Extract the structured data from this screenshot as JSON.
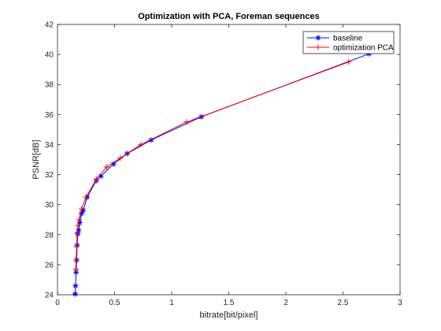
{
  "chart_data": {
    "type": "line",
    "title": "Optimization with PCA, Foreman sequences",
    "xlabel": "bitrate[bit/pixel]",
    "ylabel": "PSNR[dB]",
    "xlim": [
      0,
      3
    ],
    "ylim": [
      24,
      42
    ],
    "xticks": [
      0,
      0.5,
      1,
      1.5,
      2,
      2.5,
      3
    ],
    "xtick_labels": [
      "0",
      "0.5",
      "1",
      "1.5",
      "2",
      "2.5",
      "3"
    ],
    "yticks": [
      24,
      26,
      28,
      30,
      32,
      34,
      36,
      38,
      40,
      42
    ],
    "ytick_labels": [
      "24",
      "26",
      "28",
      "30",
      "32",
      "34",
      "36",
      "38",
      "40",
      "42"
    ],
    "grid": false,
    "legend_position": "top-right",
    "series": [
      {
        "name": "baseline",
        "color": "#0000ff",
        "marker": "asterisk",
        "points": [
          [
            0.155,
            24.05
          ],
          [
            0.158,
            24.6
          ],
          [
            0.163,
            25.5
          ],
          [
            0.168,
            26.3
          ],
          [
            0.172,
            27.3
          ],
          [
            0.178,
            28.05
          ],
          [
            0.185,
            28.3
          ],
          [
            0.195,
            28.8
          ],
          [
            0.21,
            29.4
          ],
          [
            0.225,
            29.6
          ],
          [
            0.26,
            30.5
          ],
          [
            0.34,
            31.6
          ],
          [
            0.38,
            31.9
          ],
          [
            0.49,
            32.7
          ],
          [
            0.61,
            33.4
          ],
          [
            0.82,
            34.3
          ],
          [
            1.26,
            35.85
          ],
          [
            2.73,
            40.05
          ]
        ]
      },
      {
        "name": "optimization PCA",
        "color": "#ff0000",
        "marker": "plus",
        "points": [
          [
            0.16,
            25.7
          ],
          [
            0.163,
            26.3
          ],
          [
            0.168,
            27.2
          ],
          [
            0.172,
            28.1
          ],
          [
            0.18,
            28.6
          ],
          [
            0.19,
            29.0
          ],
          [
            0.21,
            29.7
          ],
          [
            0.25,
            30.5
          ],
          [
            0.34,
            31.7
          ],
          [
            0.43,
            32.5
          ],
          [
            0.55,
            33.1
          ],
          [
            0.73,
            34.0
          ],
          [
            1.13,
            35.5
          ],
          [
            2.55,
            39.5
          ]
        ]
      }
    ]
  }
}
